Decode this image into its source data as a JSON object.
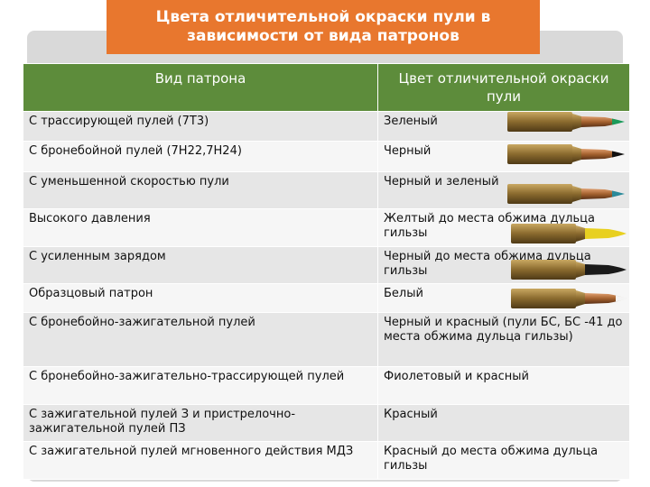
{
  "title": "Цвета отличительной окраски пули в зависимости от вида патронов",
  "table": {
    "header": [
      "Вид патрона",
      "Цвет отличительной окраски пули"
    ],
    "rows": [
      [
        "С трассирующей пулей (7Т3)",
        "Зеленый"
      ],
      [
        "С бронебойной пулей (7Н22,7Н24)",
        "Черный"
      ],
      [
        "С уменьшенной скоростью пули",
        "Черный и зеленый"
      ],
      [
        "Высокого давления",
        "Желтый до места обжима дульца гильзы"
      ],
      [
        "С усиленным зарядом",
        "Черный до места обжима дульца гильзы"
      ],
      [
        "Образцовый патрон",
        "Белый"
      ],
      [
        "С бронебойно-зажигательной пулей",
        "Черный и красный (пули БС, БС -41 до места обжима дульца гильзы)"
      ],
      [
        "С бронебойно-зажигательно-трассирующей пулей",
        "Фиолетовый и красный"
      ],
      [
        "С зажигательной пулей З и пристрелочно-зажигательной пулей ПЗ",
        "Красный"
      ],
      [
        "С зажигательной пулей мгновенного действия МДЗ",
        "Красный до места обжима дульца гильзы"
      ]
    ]
  }
}
